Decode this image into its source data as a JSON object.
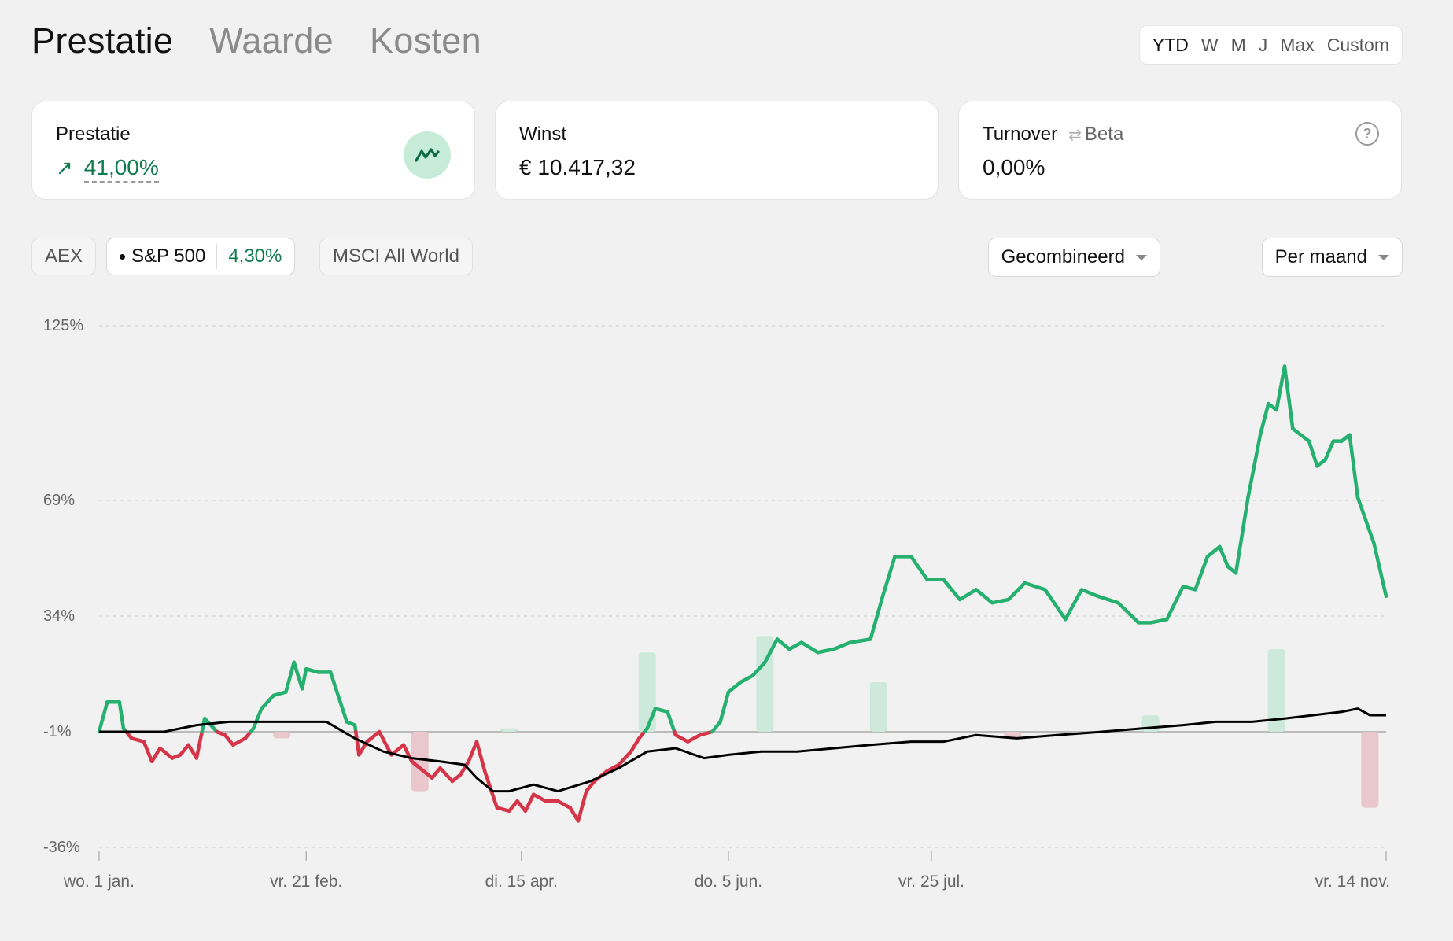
{
  "tabs": [
    {
      "label": "Prestatie",
      "active": true
    },
    {
      "label": "Waarde",
      "active": false
    },
    {
      "label": "Kosten",
      "active": false
    }
  ],
  "range": [
    "YTD",
    "W",
    "M",
    "J",
    "Max",
    "Custom"
  ],
  "range_active": "YTD",
  "cards": {
    "prestatie": {
      "label": "Prestatie",
      "value": "41,00%",
      "icon": "trend-icon"
    },
    "winst": {
      "label": "Winst",
      "value": "€ 10.417,32"
    },
    "turnover": {
      "label": "Turnover",
      "beta": "Beta",
      "value": "0,00%",
      "help": "?"
    }
  },
  "benchmarks": {
    "aex": "AEX",
    "sp500": {
      "label": "S&P 500",
      "value": "4,30%"
    },
    "msci": "MSCI All World"
  },
  "dropdowns": {
    "mode": "Gecombineerd",
    "period": "Per maand"
  },
  "colors": {
    "positive": "#25b070",
    "negative": "#d43548",
    "benchmark": "#000000"
  },
  "chart_data": {
    "type": "line",
    "title": "",
    "ylabel": "",
    "y_ticks": [
      "125%",
      "69%",
      "34%",
      "-1%",
      "-36%"
    ],
    "y_tick_values": [
      125,
      69,
      34,
      -1,
      -36
    ],
    "ylim": [
      -36,
      125
    ],
    "baseline": -1,
    "x_tick_labels": [
      "wo. 1 jan.",
      "vr. 21 feb.",
      "di. 15 apr.",
      "do. 5 jun.",
      "vr. 25 jul.",
      "vr. 14 nov."
    ],
    "x_tick_dates": [
      "2025-01-01",
      "2025-02-21",
      "2025-04-15",
      "2025-06-05",
      "2025-07-25",
      "2025-11-14"
    ],
    "xlim": [
      "2025-01-01",
      "2025-11-14"
    ],
    "series": [
      {
        "role": "portfolio",
        "points": [
          [
            "2025-01-01",
            -1
          ],
          [
            "2025-01-03",
            8
          ],
          [
            "2025-01-06",
            8
          ],
          [
            "2025-01-07",
            0
          ],
          [
            "2025-01-09",
            -3
          ],
          [
            "2025-01-12",
            -4
          ],
          [
            "2025-01-14",
            -10
          ],
          [
            "2025-01-16",
            -6
          ],
          [
            "2025-01-19",
            -9
          ],
          [
            "2025-01-21",
            -8
          ],
          [
            "2025-01-23",
            -5
          ],
          [
            "2025-01-25",
            -9
          ],
          [
            "2025-01-27",
            3
          ],
          [
            "2025-01-30",
            -1
          ],
          [
            "2025-02-01",
            -2
          ],
          [
            "2025-02-03",
            -5
          ],
          [
            "2025-02-06",
            -3
          ],
          [
            "2025-02-08",
            0
          ],
          [
            "2025-02-10",
            6
          ],
          [
            "2025-02-13",
            10
          ],
          [
            "2025-02-16",
            11
          ],
          [
            "2025-02-18",
            20
          ],
          [
            "2025-02-20",
            12
          ],
          [
            "2025-02-21",
            18
          ],
          [
            "2025-02-24",
            17
          ],
          [
            "2025-02-27",
            17
          ],
          [
            "2025-03-03",
            2
          ],
          [
            "2025-03-05",
            1
          ],
          [
            "2025-03-06",
            -8
          ],
          [
            "2025-03-08",
            -4
          ],
          [
            "2025-03-11",
            -1
          ],
          [
            "2025-03-14",
            -8
          ],
          [
            "2025-03-17",
            -5
          ],
          [
            "2025-03-19",
            -10
          ],
          [
            "2025-03-21",
            -12
          ],
          [
            "2025-03-24",
            -15
          ],
          [
            "2025-03-26",
            -12
          ],
          [
            "2025-03-29",
            -16
          ],
          [
            "2025-03-31",
            -14
          ],
          [
            "2025-04-02",
            -10
          ],
          [
            "2025-04-04",
            -4
          ],
          [
            "2025-04-06",
            -13
          ],
          [
            "2025-04-09",
            -24
          ],
          [
            "2025-04-12",
            -25
          ],
          [
            "2025-04-14",
            -22
          ],
          [
            "2025-04-16",
            -25
          ],
          [
            "2025-04-18",
            -20
          ],
          [
            "2025-04-21",
            -22
          ],
          [
            "2025-04-24",
            -22
          ],
          [
            "2025-04-27",
            -24
          ],
          [
            "2025-04-29",
            -28
          ],
          [
            "2025-05-01",
            -19
          ],
          [
            "2025-05-03",
            -16
          ],
          [
            "2025-05-06",
            -13
          ],
          [
            "2025-05-09",
            -11
          ],
          [
            "2025-05-12",
            -7
          ],
          [
            "2025-05-14",
            -3
          ],
          [
            "2025-05-16",
            0
          ],
          [
            "2025-05-18",
            6
          ],
          [
            "2025-05-21",
            5
          ],
          [
            "2025-05-23",
            -2
          ],
          [
            "2025-05-26",
            -4
          ],
          [
            "2025-05-29",
            -2
          ],
          [
            "2025-06-01",
            -1
          ],
          [
            "2025-06-03",
            2
          ],
          [
            "2025-06-05",
            11
          ],
          [
            "2025-06-08",
            14
          ],
          [
            "2025-06-11",
            16
          ],
          [
            "2025-06-14",
            20
          ],
          [
            "2025-06-17",
            27
          ],
          [
            "2025-06-20",
            24
          ],
          [
            "2025-06-23",
            26
          ],
          [
            "2025-06-27",
            23
          ],
          [
            "2025-07-01",
            24
          ],
          [
            "2025-07-05",
            26
          ],
          [
            "2025-07-10",
            27
          ],
          [
            "2025-07-13",
            40
          ],
          [
            "2025-07-16",
            52
          ],
          [
            "2025-07-20",
            52
          ],
          [
            "2025-07-24",
            45
          ],
          [
            "2025-07-28",
            45
          ],
          [
            "2025-08-01",
            39
          ],
          [
            "2025-08-05",
            42
          ],
          [
            "2025-08-09",
            38
          ],
          [
            "2025-08-13",
            39
          ],
          [
            "2025-08-17",
            44
          ],
          [
            "2025-08-22",
            42
          ],
          [
            "2025-08-27",
            33
          ],
          [
            "2025-08-31",
            42
          ],
          [
            "2025-09-04",
            40
          ],
          [
            "2025-09-09",
            38
          ],
          [
            "2025-09-14",
            32
          ],
          [
            "2025-09-17",
            32
          ],
          [
            "2025-09-21",
            33
          ],
          [
            "2025-09-25",
            43
          ],
          [
            "2025-09-28",
            42
          ],
          [
            "2025-10-01",
            52
          ],
          [
            "2025-10-04",
            55
          ],
          [
            "2025-10-06",
            49
          ],
          [
            "2025-10-08",
            47
          ],
          [
            "2025-10-11",
            70
          ],
          [
            "2025-10-14",
            90
          ],
          [
            "2025-10-16",
            100
          ],
          [
            "2025-10-18",
            98
          ],
          [
            "2025-10-20",
            112
          ],
          [
            "2025-10-22",
            92
          ],
          [
            "2025-10-24",
            90
          ],
          [
            "2025-10-26",
            88
          ],
          [
            "2025-10-28",
            80
          ],
          [
            "2025-10-30",
            82
          ],
          [
            "2025-11-01",
            88
          ],
          [
            "2025-11-03",
            88
          ],
          [
            "2025-11-05",
            90
          ],
          [
            "2025-11-07",
            70
          ],
          [
            "2025-11-09",
            63
          ],
          [
            "2025-11-11",
            56
          ],
          [
            "2025-11-14",
            40
          ]
        ]
      },
      {
        "name": "S&P 500",
        "points": [
          [
            "2025-01-01",
            -1
          ],
          [
            "2025-01-09",
            -1
          ],
          [
            "2025-01-17",
            -1
          ],
          [
            "2025-01-25",
            1
          ],
          [
            "2025-02-02",
            2
          ],
          [
            "2025-02-10",
            2
          ],
          [
            "2025-02-18",
            2
          ],
          [
            "2025-02-26",
            2
          ],
          [
            "2025-03-05",
            -3
          ],
          [
            "2025-03-12",
            -7
          ],
          [
            "2025-03-19",
            -9
          ],
          [
            "2025-03-26",
            -10
          ],
          [
            "2025-04-01",
            -11
          ],
          [
            "2025-04-04",
            -15
          ],
          [
            "2025-04-08",
            -19
          ],
          [
            "2025-04-12",
            -19
          ],
          [
            "2025-04-18",
            -17
          ],
          [
            "2025-04-24",
            -19
          ],
          [
            "2025-05-02",
            -16
          ],
          [
            "2025-05-09",
            -12
          ],
          [
            "2025-05-16",
            -7
          ],
          [
            "2025-05-23",
            -6
          ],
          [
            "2025-05-30",
            -9
          ],
          [
            "2025-06-05",
            -8
          ],
          [
            "2025-06-13",
            -7
          ],
          [
            "2025-06-22",
            -7
          ],
          [
            "2025-07-01",
            -6
          ],
          [
            "2025-07-10",
            -5
          ],
          [
            "2025-07-20",
            -4
          ],
          [
            "2025-07-28",
            -4
          ],
          [
            "2025-08-05",
            -2
          ],
          [
            "2025-08-15",
            -3
          ],
          [
            "2025-08-25",
            -2
          ],
          [
            "2025-09-05",
            -1
          ],
          [
            "2025-09-15",
            0
          ],
          [
            "2025-09-25",
            1
          ],
          [
            "2025-10-03",
            2
          ],
          [
            "2025-10-12",
            2
          ],
          [
            "2025-10-20",
            3
          ],
          [
            "2025-10-27",
            4
          ],
          [
            "2025-11-03",
            5
          ],
          [
            "2025-11-07",
            6
          ],
          [
            "2025-11-10",
            4
          ],
          [
            "2025-11-14",
            4
          ]
        ]
      }
    ],
    "bars": [
      {
        "date": "2025-02-15",
        "value": -3
      },
      {
        "date": "2025-03-21",
        "value": -19
      },
      {
        "date": "2025-04-12",
        "value": 0
      },
      {
        "date": "2025-05-16",
        "value": 23
      },
      {
        "date": "2025-06-14",
        "value": 28
      },
      {
        "date": "2025-07-12",
        "value": 14
      },
      {
        "date": "2025-08-14",
        "value": -3
      },
      {
        "date": "2025-09-17",
        "value": 4
      },
      {
        "date": "2025-10-18",
        "value": 24
      },
      {
        "date": "2025-11-10",
        "value": -24
      }
    ],
    "grid": true,
    "legend": "none"
  }
}
